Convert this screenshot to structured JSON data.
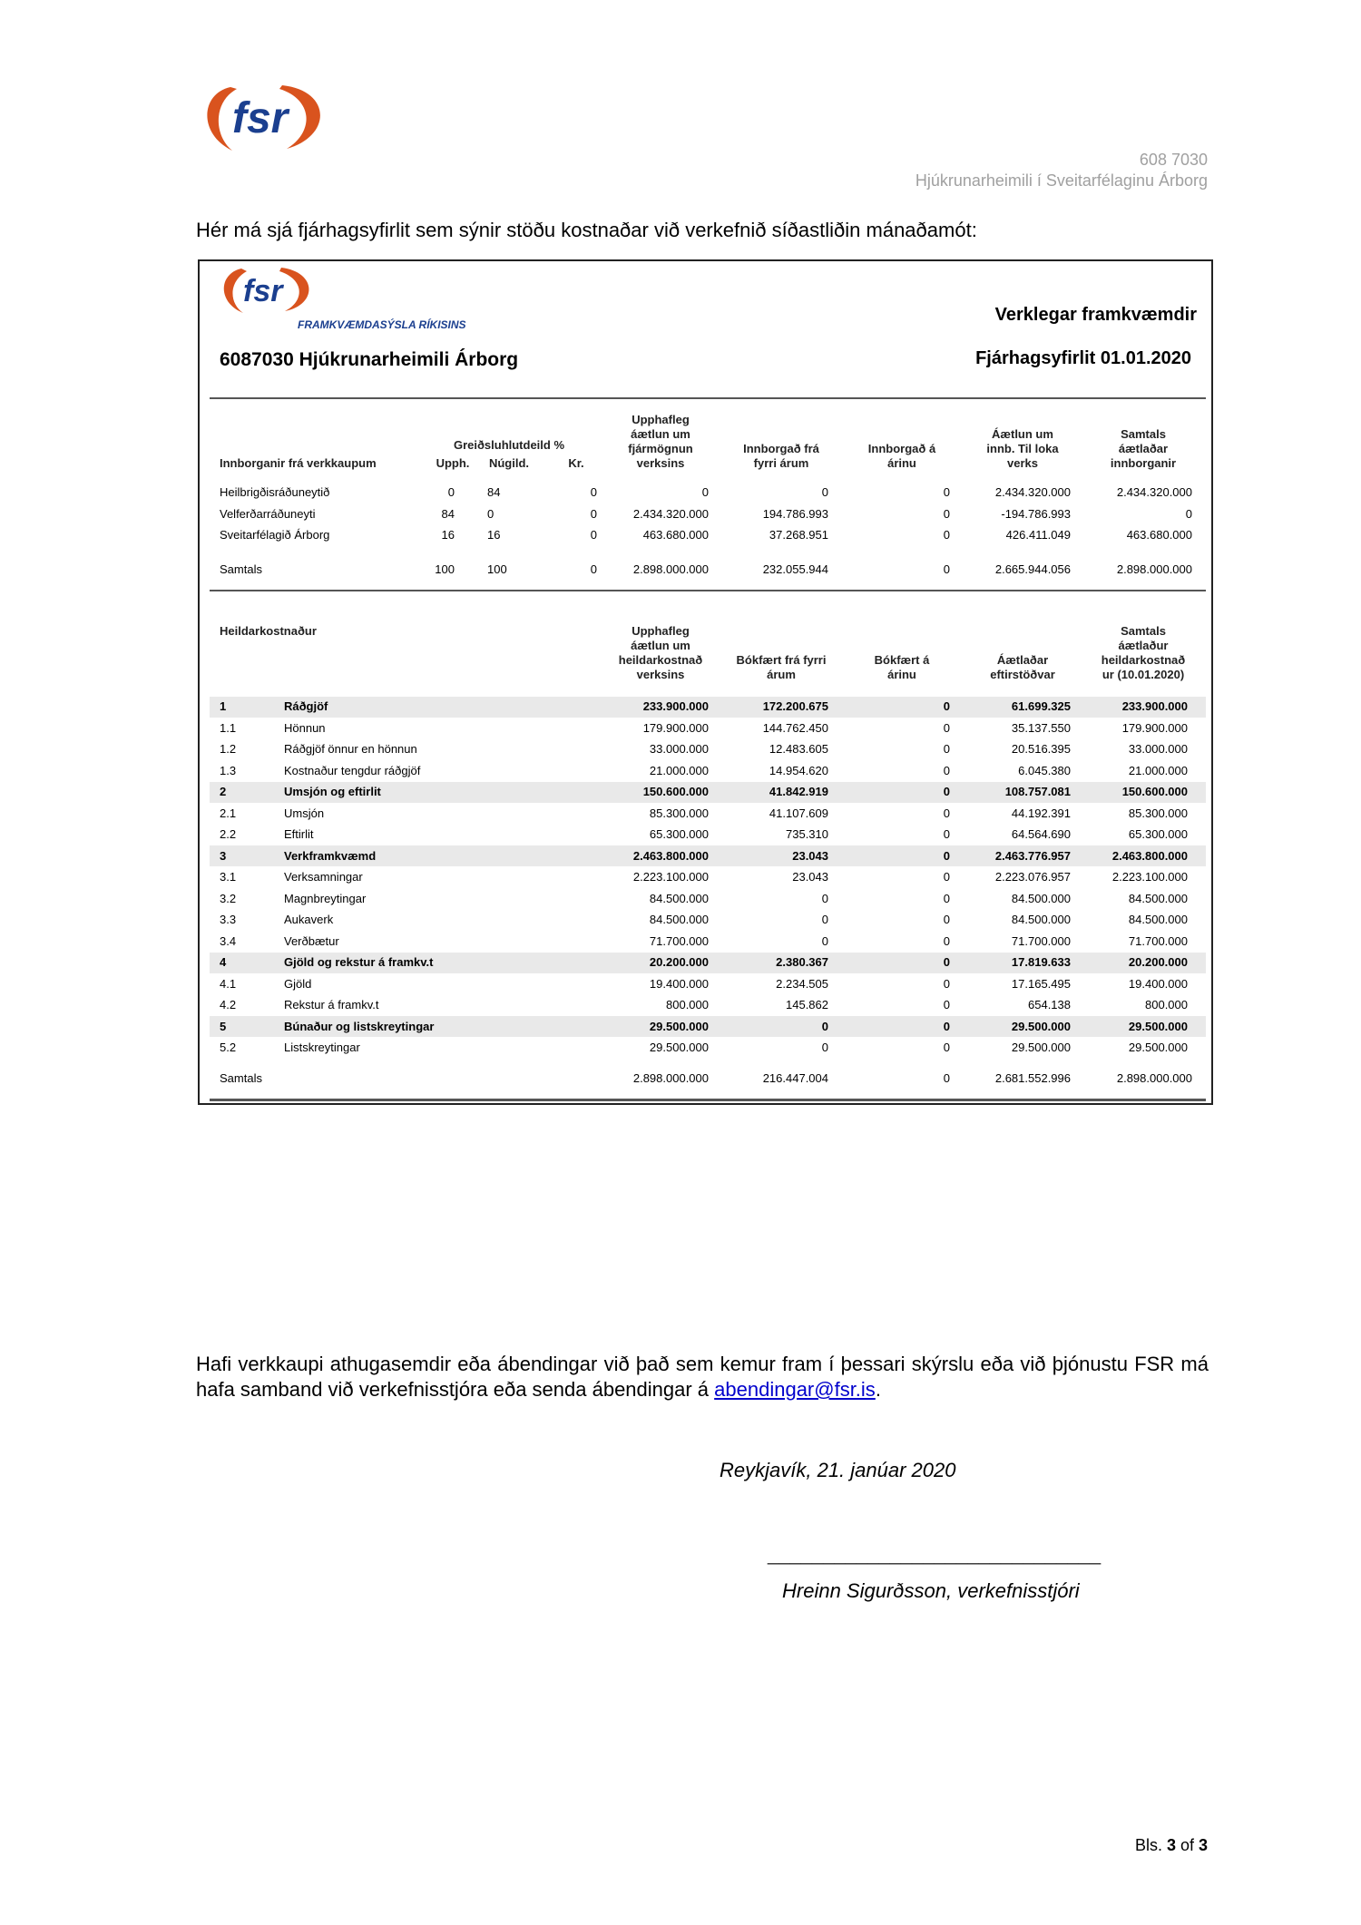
{
  "header": {
    "logo_text": "fsr",
    "project_no": "608 7030",
    "project_name": "Hjúkrunarheimili í Sveitarfélaginu Árborg"
  },
  "intro": "Hér má sjá fjárhagsyfirlit sem sýnir stöðu kostnaðar við verkefnið síðastliðin mánaðamót:",
  "report": {
    "logo_text": "fsr",
    "org_name": "FRAMKVÆMDASÝSLA RÍKISINS",
    "category": "Verklegar framkvæmdir",
    "project": "6087030  Hjúkrunarheimili Árborg",
    "report_title": "Fjárhagsyfirlit 01.01.2020",
    "payments": {
      "headers": {
        "label": "Innborganir frá verkkaupum",
        "share": "Greiðsluhlutdeild %",
        "upph": "Upph.",
        "nugild": "Núgild.",
        "kr": "Kr.",
        "c1": "Upphafleg\náætlun um\nfjármögnun\nverksins",
        "c2": "Innborgað frá\nfyrri árum",
        "c3": "Innborgað á\nárinu",
        "c4": "Áætlun um\ninnb. Til loka\nverks",
        "c5": "Samtals\náætlaðar\ninnborganir"
      },
      "rows": [
        [
          "Heilbrigðisráðuneytið",
          "0",
          "84",
          "0",
          "0",
          "0",
          "0",
          "2.434.320.000",
          "2.434.320.000"
        ],
        [
          "Velferðarráðuneyti",
          "84",
          "0",
          "0",
          "2.434.320.000",
          "194.786.993",
          "0",
          "-194.786.993",
          "0"
        ],
        [
          "Sveitarfélagið Árborg",
          "16",
          "16",
          "0",
          "463.680.000",
          "37.268.951",
          "0",
          "426.411.049",
          "463.680.000"
        ]
      ],
      "total": [
        "Samtals",
        "100",
        "100",
        "0",
        "2.898.000.000",
        "232.055.944",
        "0",
        "2.665.944.056",
        "2.898.000.000"
      ]
    },
    "costs": {
      "headers": {
        "label": "Heildarkostnaður",
        "c1": "Upphafleg\náætlun um\nheildarkostnað\nverksins",
        "c2": "Bókfært frá fyrri\nárum",
        "c3": "Bókfært á\nárinu",
        "c4": "Áætlaðar\neftirstöðvar",
        "c5": "Samtals\náætlaður\nheildarkostnað\nur (10.01.2020)"
      },
      "rows": [
        {
          "code": "1",
          "name": "Ráðgjöf",
          "group": true,
          "v": [
            "233.900.000",
            "172.200.675",
            "0",
            "61.699.325",
            "233.900.000"
          ]
        },
        {
          "code": "1.1",
          "name": "Hönnun",
          "v": [
            "179.900.000",
            "144.762.450",
            "0",
            "35.137.550",
            "179.900.000"
          ]
        },
        {
          "code": "1.2",
          "name": "Ráðgjöf önnur en hönnun",
          "v": [
            "33.000.000",
            "12.483.605",
            "0",
            "20.516.395",
            "33.000.000"
          ]
        },
        {
          "code": "1.3",
          "name": "Kostnaður tengdur ráðgjöf",
          "v": [
            "21.000.000",
            "14.954.620",
            "0",
            "6.045.380",
            "21.000.000"
          ]
        },
        {
          "code": "2",
          "name": "Umsjón og eftirlit",
          "group": true,
          "v": [
            "150.600.000",
            "41.842.919",
            "0",
            "108.757.081",
            "150.600.000"
          ]
        },
        {
          "code": "2.1",
          "name": "Umsjón",
          "v": [
            "85.300.000",
            "41.107.609",
            "0",
            "44.192.391",
            "85.300.000"
          ]
        },
        {
          "code": "2.2",
          "name": "Eftirlit",
          "v": [
            "65.300.000",
            "735.310",
            "0",
            "64.564.690",
            "65.300.000"
          ]
        },
        {
          "code": "3",
          "name": "Verkframkvæmd",
          "group": true,
          "v": [
            "2.463.800.000",
            "23.043",
            "0",
            "2.463.776.957",
            "2.463.800.000"
          ]
        },
        {
          "code": "3.1",
          "name": "Verksamningar",
          "v": [
            "2.223.100.000",
            "23.043",
            "0",
            "2.223.076.957",
            "2.223.100.000"
          ]
        },
        {
          "code": "3.2",
          "name": "Magnbreytingar",
          "v": [
            "84.500.000",
            "0",
            "0",
            "84.500.000",
            "84.500.000"
          ]
        },
        {
          "code": "3.3",
          "name": "Aukaverk",
          "v": [
            "84.500.000",
            "0",
            "0",
            "84.500.000",
            "84.500.000"
          ]
        },
        {
          "code": "3.4",
          "name": "Verðbætur",
          "v": [
            "71.700.000",
            "0",
            "0",
            "71.700.000",
            "71.700.000"
          ]
        },
        {
          "code": "4",
          "name": "Gjöld og rekstur á framkv.t",
          "group": true,
          "v": [
            "20.200.000",
            "2.380.367",
            "0",
            "17.819.633",
            "20.200.000"
          ]
        },
        {
          "code": "4.1",
          "name": "Gjöld",
          "v": [
            "19.400.000",
            "2.234.505",
            "0",
            "17.165.495",
            "19.400.000"
          ]
        },
        {
          "code": "4.2",
          "name": "Rekstur á framkv.t",
          "v": [
            "800.000",
            "145.862",
            "0",
            "654.138",
            "800.000"
          ]
        },
        {
          "code": "5",
          "name": "Búnaður og listskreytingar",
          "group": true,
          "v": [
            "29.500.000",
            "0",
            "0",
            "29.500.000",
            "29.500.000"
          ]
        },
        {
          "code": "5.2",
          "name": "Listskreytingar",
          "v": [
            "29.500.000",
            "0",
            "0",
            "29.500.000",
            "29.500.000"
          ]
        }
      ],
      "total": {
        "name": "Samtals",
        "v": [
          "2.898.000.000",
          "216.447.004",
          "0",
          "2.681.552.996",
          "2.898.000.000"
        ]
      }
    }
  },
  "footer": {
    "paragraph": "Hafi verkkaupi athugasemdir eða ábendingar við það sem kemur fram í þessari skýrslu eða við þjónustu FSR má hafa samband við verkefnisstjóra eða senda ábendingar á ",
    "email": "abendingar@fsr.is",
    "period": ".",
    "date_line": "Reykjavík, 21. janúar 2020",
    "signature_line": "______________________________",
    "signer": "Hreinn Sigurðsson, verkefnisstjóri",
    "page_prefix": "Bls. ",
    "page": "3",
    "page_of": " of ",
    "pages": "3"
  },
  "colors": {
    "logo_orange": "#d9531e",
    "logo_blue": "#1b3f8f",
    "link": "#0000cc",
    "shade": "#e9e9e9"
  }
}
